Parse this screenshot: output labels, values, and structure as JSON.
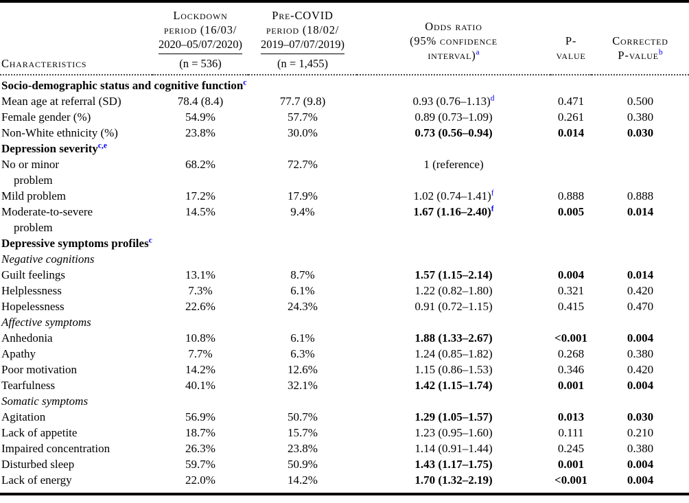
{
  "colors": {
    "footnote_marker": "#0000EE",
    "text": "#000000",
    "rule": "#000000"
  },
  "header": {
    "characteristics": "Characteristics",
    "lockdown": {
      "lines": [
        "Lockdown",
        "period (16/03/",
        "2020–05/07/2020)"
      ],
      "n": "(n = 536)"
    },
    "precovid": {
      "lines": [
        "Pre-COVID",
        "period (18/02/",
        "2019–07/07/2019)"
      ],
      "n": "(n = 1,455)"
    },
    "odds_ratio": {
      "lines": [
        "Odds ratio",
        "(95% confidence",
        "interval)"
      ],
      "sup": "a"
    },
    "p_value": {
      "lines": [
        "P-",
        "value"
      ]
    },
    "corrected": {
      "lines": [
        "Corrected",
        "P-value"
      ],
      "sup": "b"
    }
  },
  "rows": [
    {
      "label": "Socio-demographic status and cognitive function",
      "sup": "c"
    },
    {
      "label": "Mean age at referral (SD)",
      "lockdown": "78.4 (8.4)",
      "precovid": "77.7 (9.8)",
      "or": "0.93 (0.76–1.13)",
      "or_sup": "d",
      "p": "0.471",
      "cp": "0.500"
    },
    {
      "label": "Female gender (%)",
      "lockdown": "54.9%",
      "precovid": "57.7%",
      "or": "0.89 (0.73–1.09)",
      "p": "0.261",
      "cp": "0.380"
    },
    {
      "label": "Non-White ethnicity (%)",
      "lockdown": "23.8%",
      "precovid": "30.0%",
      "or": "0.73 (0.56–0.94)",
      "p": "0.014",
      "cp": "0.030"
    },
    {
      "label": "Depression severity",
      "sup": "c,e"
    },
    {
      "label": "No or minor",
      "label2": "problem",
      "lockdown": "68.2%",
      "precovid": "72.7%",
      "or": "1 (reference)"
    },
    {
      "label": "Mild problem",
      "lockdown": "17.2%",
      "precovid": "17.9%",
      "or": "1.02 (0.74–1.41)",
      "or_sup": "f",
      "p": "0.888",
      "cp": "0.888"
    },
    {
      "label": "Moderate-to-severe",
      "label2": "problem",
      "lockdown": "14.5%",
      "precovid": "9.4%",
      "or": "1.67 (1.16–2.40)",
      "or_sup": "f",
      "p": "0.005",
      "cp": "0.014"
    },
    {
      "label": "Depressive symptoms profiles",
      "sup": "c"
    },
    {
      "label": "Negative cognitions"
    },
    {
      "label": "Guilt feelings",
      "lockdown": "13.1%",
      "precovid": "8.7%",
      "or": "1.57 (1.15–2.14)",
      "p": "0.004",
      "cp": "0.014"
    },
    {
      "label": "Helplessness",
      "lockdown": "7.3%",
      "precovid": "6.1%",
      "or": "1.22 (0.82–1.80)",
      "p": "0.321",
      "cp": "0.420"
    },
    {
      "label": "Hopelessness",
      "lockdown": "22.6%",
      "precovid": "24.3%",
      "or": "0.91 (0.72–1.15)",
      "p": "0.415",
      "cp": "0.470"
    },
    {
      "label": "Affective symptoms"
    },
    {
      "label": "Anhedonia",
      "lockdown": "10.8%",
      "precovid": "6.1%",
      "or": "1.88 (1.33–2.67)",
      "p": "<0.001",
      "cp": "0.004"
    },
    {
      "label": "Apathy",
      "lockdown": "7.7%",
      "precovid": "6.3%",
      "or": "1.24 (0.85–1.82)",
      "p": "0.268",
      "cp": "0.380"
    },
    {
      "label": "Poor motivation",
      "lockdown": "14.2%",
      "precovid": "12.6%",
      "or": "1.15 (0.86–1.53)",
      "p": "0.346",
      "cp": "0.420"
    },
    {
      "label": "Tearfulness",
      "lockdown": "40.1%",
      "precovid": "32.1%",
      "or": "1.42 (1.15–1.74)",
      "p": "0.001",
      "cp": "0.004"
    },
    {
      "label": "Somatic symptoms"
    },
    {
      "label": "Agitation",
      "lockdown": "56.9%",
      "precovid": "50.7%",
      "or": "1.29 (1.05–1.57)",
      "p": "0.013",
      "cp": "0.030"
    },
    {
      "label": "Lack of appetite",
      "lockdown": "18.7%",
      "precovid": "15.7%",
      "or": "1.23 (0.95–1.60)",
      "p": "0.111",
      "cp": "0.210"
    },
    {
      "label": "Impaired concentration",
      "lockdown": "26.3%",
      "precovid": "23.8%",
      "or": "1.14 (0.91–1.44)",
      "p": "0.245",
      "cp": "0.380"
    },
    {
      "label": "Disturbed sleep",
      "lockdown": "59.7%",
      "precovid": "50.9%",
      "or": "1.43 (1.17–1.75)",
      "p": "0.001",
      "cp": "0.004"
    },
    {
      "label": "Lack of energy",
      "lockdown": "22.0%",
      "precovid": "14.2%",
      "or": "1.70 (1.32–2.19)",
      "p": "<0.001",
      "cp": "0.004"
    }
  ]
}
